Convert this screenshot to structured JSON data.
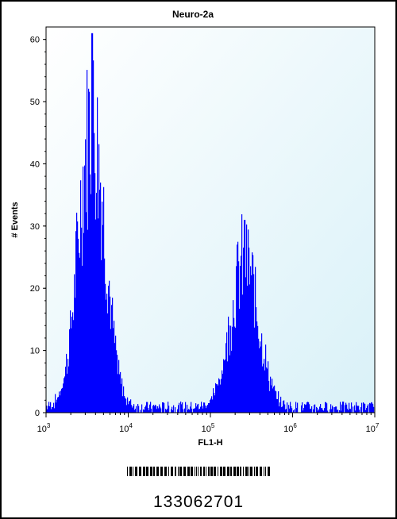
{
  "chart_data": {
    "type": "histogram",
    "title": "Neuro-2a",
    "xlabel": "FL1-H",
    "ylabel": "# Events",
    "x_scale": "log",
    "xlim": [
      1000,
      10000000
    ],
    "ylim": [
      0,
      62
    ],
    "x_ticks": [
      {
        "base": "10",
        "exp": "3",
        "value": 1000
      },
      {
        "base": "10",
        "exp": "4",
        "value": 10000
      },
      {
        "base": "10",
        "exp": "5",
        "value": 100000
      },
      {
        "base": "10",
        "exp": "6",
        "value": 1000000
      },
      {
        "base": "10",
        "exp": "7",
        "value": 10000000
      }
    ],
    "y_ticks": [
      "0",
      "10",
      "20",
      "30",
      "40",
      "50",
      "60"
    ],
    "series": [
      {
        "fill_color": "#0000ff",
        "peaks": [
          {
            "center": 3600,
            "max_events": 61
          },
          {
            "center": 260000,
            "max_events": 31
          }
        ]
      }
    ],
    "background_gradient": [
      "#ffffff",
      "#d9f1f8"
    ],
    "grid": false
  },
  "barcode": {
    "number": "133062701"
  }
}
